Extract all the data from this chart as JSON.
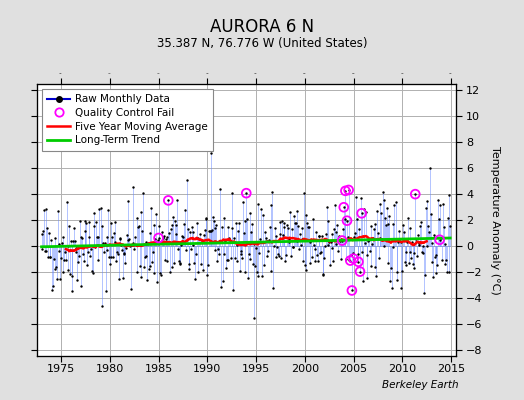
{
  "title": "AURORA 6 N",
  "subtitle": "35.387 N, 76.776 W (United States)",
  "ylabel": "Temperature Anomaly (°C)",
  "watermark": "Berkeley Earth",
  "xlim": [
    1972.5,
    2015.5
  ],
  "ylim": [
    -8.5,
    12.5
  ],
  "yticks": [
    -8,
    -6,
    -4,
    -2,
    0,
    2,
    4,
    6,
    8,
    10,
    12
  ],
  "xticks": [
    1975,
    1980,
    1985,
    1990,
    1995,
    2000,
    2005,
    2010,
    2015
  ],
  "bg_color": "#e0e0e0",
  "plot_bg_color": "#ffffff",
  "grid_color": "#b0b0b0",
  "stem_color": "#6688ff",
  "dot_color_raw": "#000000",
  "line_color_avg": "#ff0000",
  "line_color_trend": "#00cc00",
  "qc_color": "#ff00ff",
  "legend_line_color": "#0000cc",
  "seed": 42,
  "noise_scale": 1.8,
  "trend_slope": 0.012,
  "qc_indices": [
    144,
    156,
    252,
    370,
    372,
    374,
    376,
    378,
    380,
    382,
    384,
    390,
    392,
    394,
    460,
    490
  ]
}
